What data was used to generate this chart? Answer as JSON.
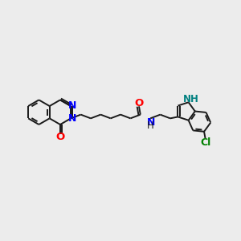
{
  "bg_color": "#ececec",
  "bond_color": "#1a1a1a",
  "N_color": "#0000ff",
  "O_color": "#ff0000",
  "Cl_color": "#008000",
  "NH_color": "#008080",
  "bond_width": 1.4,
  "font_size": 8.5,
  "figsize": [
    3.0,
    3.0
  ],
  "dpi": 100,
  "xlim": [
    0,
    10
  ],
  "ylim": [
    0,
    10
  ]
}
